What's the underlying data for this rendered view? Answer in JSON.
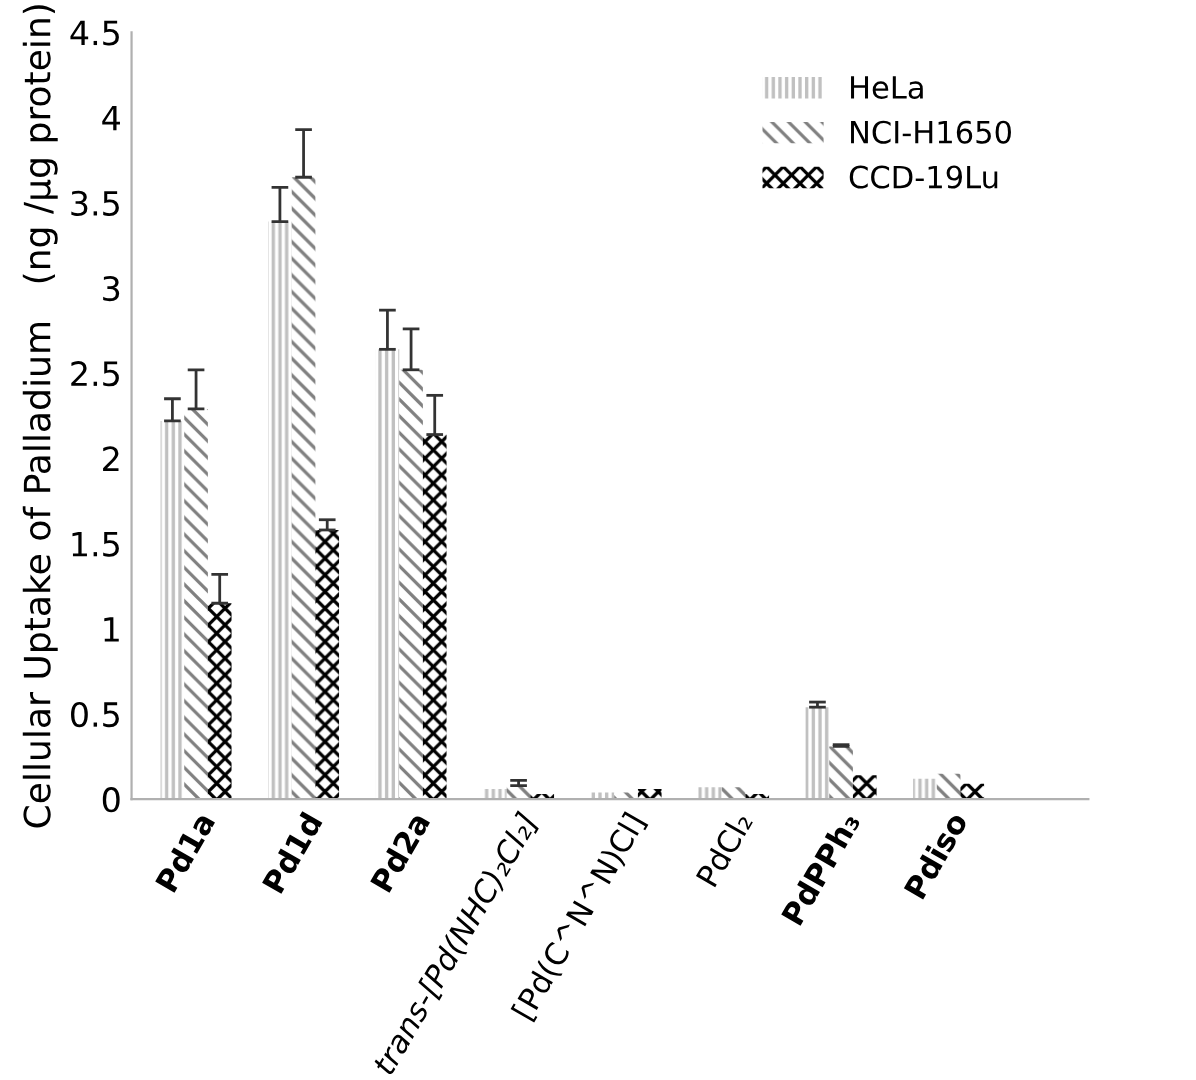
{
  "chart_data": {
    "type": "bar",
    "ylabel": "Cellular Uptake of Palladium   (ng /µg protein)",
    "categories": [
      "Pd1a",
      "Pd1d",
      "Pd2a",
      "trans-[Pd(NHC)₂Cl₂]",
      "[Pd(C^N^N)Cl]",
      "PdCl₂",
      "PdPPh₃",
      "Pdiso"
    ],
    "series": [
      {
        "name": "HeLa",
        "color": "#c0c0c0",
        "values": [
          2.22,
          3.39,
          2.64,
          0.06,
          0.04,
          0.07,
          0.54,
          0.12
        ],
        "errors": [
          0.13,
          0.2,
          0.23,
          null,
          null,
          null,
          0.03,
          null
        ]
      },
      {
        "name": "NCI-H1650",
        "color": "#808080",
        "values": [
          2.29,
          3.65,
          2.52,
          0.08,
          0.04,
          0.07,
          0.31,
          0.15
        ],
        "errors": [
          0.23,
          0.28,
          0.24,
          0.03,
          null,
          null,
          0.01,
          null
        ]
      },
      {
        "name": "CCD-19Lu",
        "color": "#000000",
        "values": [
          1.15,
          1.58,
          2.14,
          0.03,
          0.06,
          0.03,
          0.14,
          0.09
        ],
        "errors": [
          0.17,
          0.06,
          0.23,
          null,
          null,
          null,
          null,
          null
        ]
      }
    ],
    "ylim": [
      0,
      4.5
    ],
    "yticks": [
      0,
      0.5,
      1,
      1.5,
      2,
      2.5,
      3,
      3.5,
      4,
      4.5
    ],
    "grid": false,
    "legend": "top right"
  }
}
